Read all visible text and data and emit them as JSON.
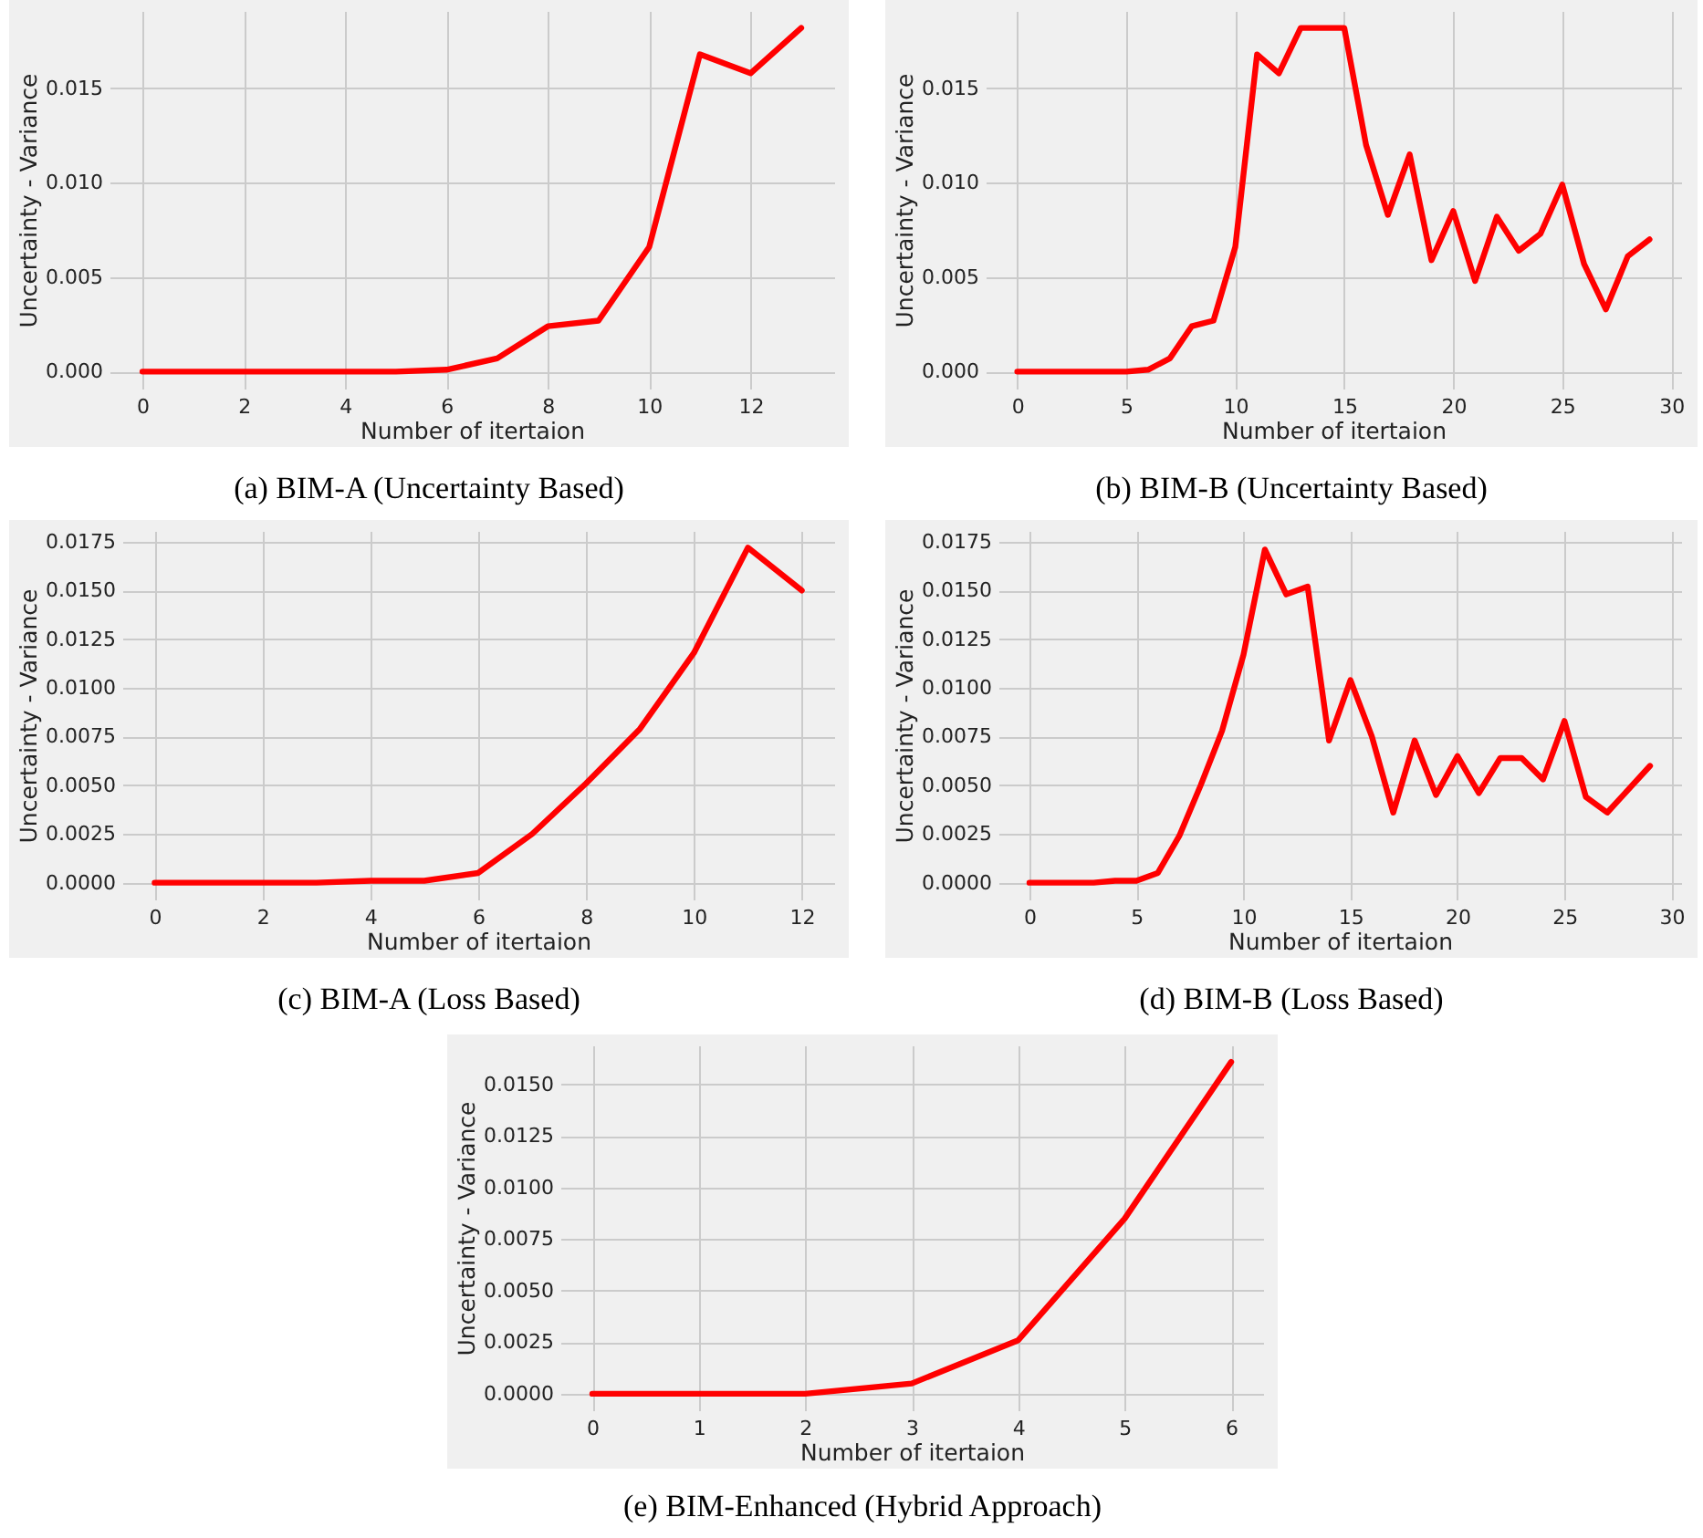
{
  "chart_data": [
    {
      "type": "line",
      "title": "(a) BIM-A (Uncertainty Based)",
      "xlabel": "Number of itertaion",
      "ylabel": "Uncertainty - Variance",
      "grid": true,
      "line_style": "solid",
      "marker": "none",
      "x": [
        0,
        1,
        2,
        3,
        4,
        5,
        6,
        7,
        8,
        9,
        10,
        11,
        12,
        13
      ],
      "series": [
        {
          "color": "#ff0000",
          "values": [
            0,
            0,
            0,
            0,
            0,
            0,
            0.0001,
            0.0007,
            0.0024,
            0.0027,
            0.0066,
            0.0168,
            0.0158,
            0.0182
          ]
        }
      ],
      "xlim": [
        -0.65,
        13.65
      ],
      "xticks": [
        0,
        2,
        4,
        6,
        8,
        10,
        12
      ],
      "ylim": [
        -0.0009,
        0.0191
      ],
      "yticks": [
        {
          "value": 0,
          "label": "0.000"
        },
        {
          "value": 0.005,
          "label": "0.005"
        },
        {
          "value": 0.01,
          "label": "0.010"
        },
        {
          "value": 0.015,
          "label": "0.015"
        }
      ]
    },
    {
      "type": "line",
      "title": "(b) BIM-B (Uncertainty Based)",
      "xlabel": "Number of itertaion",
      "ylabel": "Uncertainty - Variance",
      "grid": true,
      "line_style": "solid",
      "marker": "none",
      "x": [
        0,
        1,
        2,
        3,
        4,
        5,
        6,
        7,
        8,
        9,
        10,
        11,
        12,
        13,
        14,
        15,
        16,
        17,
        18,
        19,
        20,
        21,
        22,
        23,
        24,
        25,
        26,
        27,
        28,
        29
      ],
      "series": [
        {
          "color": "#ff0000",
          "values": [
            0,
            0,
            0,
            0,
            0,
            0,
            0.0001,
            0.0007,
            0.0024,
            0.0027,
            0.0066,
            0.0168,
            0.0158,
            0.0182,
            0.0182,
            0.0182,
            0.012,
            0.0083,
            0.0115,
            0.0059,
            0.0085,
            0.0048,
            0.0082,
            0.0064,
            0.0073,
            0.0099,
            0.0057,
            0.0033,
            0.0061,
            0.007
          ]
        }
      ],
      "xlim": [
        -1.45,
        30.45
      ],
      "xticks": [
        0,
        5,
        10,
        15,
        20,
        25,
        30
      ],
      "ylim": [
        -0.0009,
        0.0191
      ],
      "yticks": [
        {
          "value": 0,
          "label": "0.000"
        },
        {
          "value": 0.005,
          "label": "0.005"
        },
        {
          "value": 0.01,
          "label": "0.010"
        },
        {
          "value": 0.015,
          "label": "0.015"
        }
      ]
    },
    {
      "type": "line",
      "title": "(c) BIM-A (Loss Based)",
      "xlabel": "Number of itertaion",
      "ylabel": "Uncertainty - Variance",
      "grid": true,
      "line_style": "solid",
      "marker": "none",
      "x": [
        0,
        1,
        2,
        3,
        4,
        5,
        6,
        7,
        8,
        9,
        10,
        11,
        12
      ],
      "series": [
        {
          "color": "#ff0000",
          "values": [
            0,
            0,
            0,
            0,
            0.0001,
            0.0001,
            0.0005,
            0.0025,
            0.0051,
            0.0079,
            0.0118,
            0.0172,
            0.015
          ]
        }
      ],
      "xlim": [
        -0.6,
        12.6
      ],
      "xticks": [
        0,
        2,
        4,
        6,
        8,
        10,
        12
      ],
      "ylim": [
        -0.00086,
        0.01806
      ],
      "yticks": [
        {
          "value": 0,
          "label": "0.0000"
        },
        {
          "value": 0.0025,
          "label": "0.0025"
        },
        {
          "value": 0.005,
          "label": "0.0050"
        },
        {
          "value": 0.0075,
          "label": "0.0075"
        },
        {
          "value": 0.01,
          "label": "0.0100"
        },
        {
          "value": 0.0125,
          "label": "0.0125"
        },
        {
          "value": 0.015,
          "label": "0.0150"
        },
        {
          "value": 0.0175,
          "label": "0.0175"
        }
      ]
    },
    {
      "type": "line",
      "title": "(d) BIM-B (Loss Based)",
      "xlabel": "Number of itertaion",
      "ylabel": "Uncertainty - Variance",
      "grid": true,
      "line_style": "solid",
      "marker": "none",
      "x": [
        0,
        1,
        2,
        3,
        4,
        5,
        6,
        7,
        8,
        9,
        10,
        11,
        12,
        13,
        14,
        15,
        16,
        17,
        18,
        19,
        20,
        21,
        22,
        23,
        24,
        25,
        26,
        27,
        28,
        29
      ],
      "series": [
        {
          "color": "#ff0000",
          "values": [
            0,
            0,
            0,
            0,
            0.0001,
            0.0001,
            0.0005,
            0.0024,
            0.005,
            0.0078,
            0.0117,
            0.0171,
            0.0148,
            0.0152,
            0.0073,
            0.0104,
            0.0075,
            0.0036,
            0.0073,
            0.0045,
            0.0065,
            0.0046,
            0.0064,
            0.0064,
            0.0053,
            0.0083,
            0.0044,
            0.0036,
            0.0048,
            0.006
          ]
        }
      ],
      "xlim": [
        -1.45,
        30.45
      ],
      "xticks": [
        0,
        5,
        10,
        15,
        20,
        25,
        30
      ],
      "ylim": [
        -0.00086,
        0.01806
      ],
      "yticks": [
        {
          "value": 0,
          "label": "0.0000"
        },
        {
          "value": 0.0025,
          "label": "0.0025"
        },
        {
          "value": 0.005,
          "label": "0.0050"
        },
        {
          "value": 0.0075,
          "label": "0.0075"
        },
        {
          "value": 0.01,
          "label": "0.0100"
        },
        {
          "value": 0.0125,
          "label": "0.0125"
        },
        {
          "value": 0.015,
          "label": "0.0150"
        },
        {
          "value": 0.0175,
          "label": "0.0175"
        }
      ]
    },
    {
      "type": "line",
      "title": "(e) BIM-Enhanced (Hybrid Approach)",
      "xlabel": "Number of itertaion",
      "ylabel": "Uncertainty - Variance",
      "grid": true,
      "line_style": "solid",
      "marker": "none",
      "x": [
        0,
        1,
        2,
        3,
        4,
        5,
        6
      ],
      "series": [
        {
          "color": "#ff0000",
          "values": [
            0,
            0,
            0,
            0.0005,
            0.0026,
            0.0085,
            0.0161
          ]
        }
      ],
      "xlim": [
        -0.3,
        6.3
      ],
      "xticks": [
        0,
        1,
        2,
        3,
        4,
        5,
        6
      ],
      "ylim": [
        -0.0008,
        0.0169
      ],
      "yticks": [
        {
          "value": 0,
          "label": "0.0000"
        },
        {
          "value": 0.0025,
          "label": "0.0025"
        },
        {
          "value": 0.005,
          "label": "0.0050"
        },
        {
          "value": 0.0075,
          "label": "0.0075"
        },
        {
          "value": 0.01,
          "label": "0.0100"
        },
        {
          "value": 0.0125,
          "label": "0.0125"
        },
        {
          "value": 0.015,
          "label": "0.0150"
        }
      ]
    }
  ]
}
